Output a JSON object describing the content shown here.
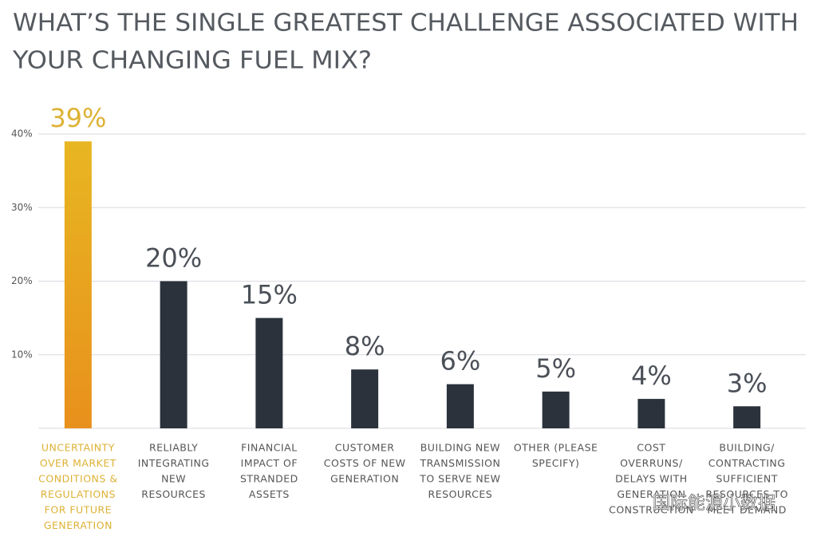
{
  "chart_data": {
    "type": "bar",
    "title": [
      "WHAT’S THE SINGLE GREATEST CHALLENGE ASSOCIATED WITH",
      "YOUR CHANGING FUEL MIX?"
    ],
    "categories": [
      [
        "UNCERTAINTY",
        "OVER MARKET",
        "CONDITIONS &",
        "REGULATIONS",
        "FOR FUTURE",
        "GENERATION"
      ],
      [
        "RELIABLY",
        "INTEGRATING",
        "NEW",
        "RESOURCES"
      ],
      [
        "FINANCIAL",
        "IMPACT OF",
        "STRANDED",
        "ASSETS"
      ],
      [
        "CUSTOMER",
        "COSTS OF NEW",
        "GENERATION"
      ],
      [
        "BUILDING NEW",
        "TRANSMISSION",
        "TO SERVE NEW",
        "RESOURCES"
      ],
      [
        "OTHER (PLEASE",
        "SPECIFY)"
      ],
      [
        "COST",
        "OVERRUNS/",
        "DELAYS WITH",
        "GENERATION",
        "CONSTRUCTION"
      ],
      [
        "BUILDING/",
        "CONTRACTING",
        "SUFFICIENT",
        "RESOURCES TO",
        "MEET DEMAND"
      ]
    ],
    "values": [
      39,
      20,
      15,
      8,
      6,
      5,
      4,
      3
    ],
    "value_labels": [
      "39%",
      "20%",
      "15%",
      "8%",
      "6%",
      "5%",
      "4%",
      "3%"
    ],
    "colors": [
      "#e6a51f",
      "#2b323c",
      "#2b323c",
      "#2b323c",
      "#2b323c",
      "#2b323c",
      "#2b323c",
      "#2b323c"
    ],
    "label_colors": [
      "#ddb235",
      "#4b5058",
      "#4b5058",
      "#4b5058",
      "#4b5058",
      "#4b5058",
      "#4b5058",
      "#4b5058"
    ],
    "ylim": [
      0,
      40
    ],
    "yticks": [
      {
        "value": 10,
        "label": "10%"
      },
      {
        "value": 20,
        "label": "20%"
      },
      {
        "value": 30,
        "label": "30%"
      },
      {
        "value": 40,
        "label": "40%"
      }
    ],
    "grid": true,
    "watermark": "国际能源小数据"
  }
}
